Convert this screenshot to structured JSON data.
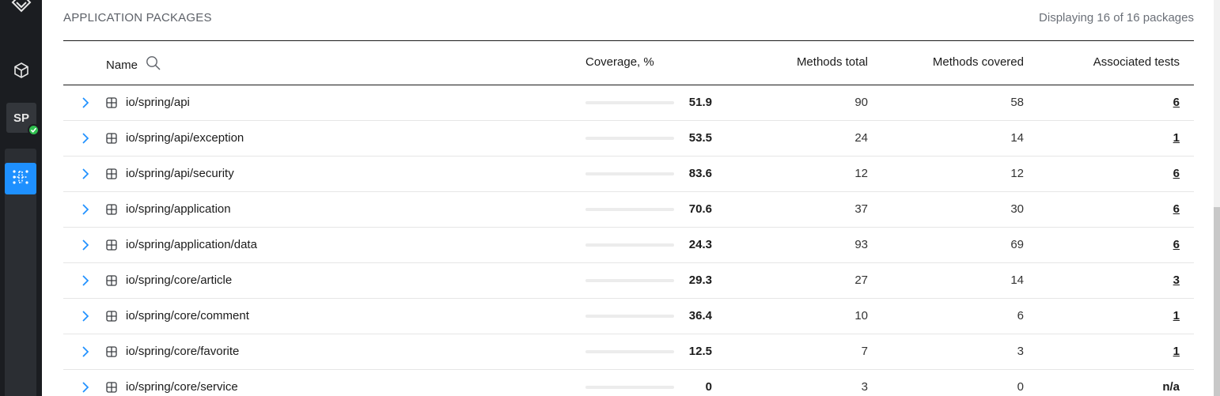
{
  "sidebar": {
    "project_badge": "SP"
  },
  "section": {
    "title": "APPLICATION PACKAGES",
    "display_count": "Displaying 16 of 16 packages"
  },
  "table": {
    "headers": {
      "name": "Name",
      "coverage": "Coverage, %",
      "methods_total": "Methods total",
      "methods_covered": "Methods covered",
      "associated_tests": "Associated tests"
    },
    "rows": [
      {
        "name": "io/spring/api",
        "coverage": "51.9",
        "coverage_pct": 51.9,
        "methods_total": "90",
        "methods_covered": "58",
        "tests": "6"
      },
      {
        "name": "io/spring/api/exception",
        "coverage": "53.5",
        "coverage_pct": 53.5,
        "methods_total": "24",
        "methods_covered": "14",
        "tests": "1"
      },
      {
        "name": "io/spring/api/security",
        "coverage": "83.6",
        "coverage_pct": 83.6,
        "methods_total": "12",
        "methods_covered": "12",
        "tests": "6"
      },
      {
        "name": "io/spring/application",
        "coverage": "70.6",
        "coverage_pct": 70.6,
        "methods_total": "37",
        "methods_covered": "30",
        "tests": "6"
      },
      {
        "name": "io/spring/application/data",
        "coverage": "24.3",
        "coverage_pct": 24.3,
        "methods_total": "93",
        "methods_covered": "69",
        "tests": "6"
      },
      {
        "name": "io/spring/core/article",
        "coverage": "29.3",
        "coverage_pct": 29.3,
        "methods_total": "27",
        "methods_covered": "14",
        "tests": "3"
      },
      {
        "name": "io/spring/core/comment",
        "coverage": "36.4",
        "coverage_pct": 36.4,
        "methods_total": "10",
        "methods_covered": "6",
        "tests": "1"
      },
      {
        "name": "io/spring/core/favorite",
        "coverage": "12.5",
        "coverage_pct": 12.5,
        "methods_total": "7",
        "methods_covered": "3",
        "tests": "1"
      },
      {
        "name": "io/spring/core/service",
        "coverage": "0",
        "coverage_pct": 0,
        "methods_total": "3",
        "methods_covered": "0",
        "tests": "n/a"
      }
    ]
  },
  "colors": {
    "accent": "#1e90ff",
    "bar_fill": "#64a8f0",
    "status_ok": "#2fbf4f"
  }
}
